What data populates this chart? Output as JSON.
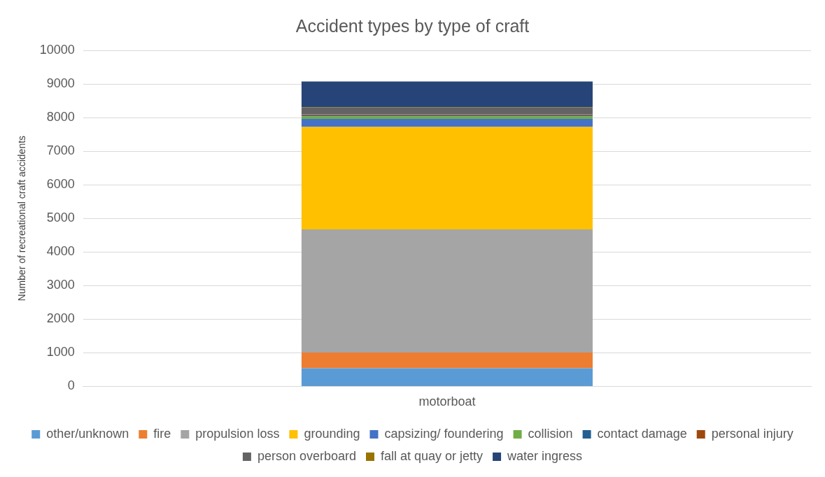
{
  "chart_data": {
    "type": "bar",
    "title": "Accident types by type of craft",
    "ylabel": "Number of recreational craft accidents",
    "categories": [
      "motorboat"
    ],
    "stacked": true,
    "ylim": [
      0,
      10000
    ],
    "yticks": [
      0,
      1000,
      2000,
      3000,
      4000,
      5000,
      6000,
      7000,
      8000,
      9000,
      10000
    ],
    "grid": "y",
    "legend": "bottom",
    "series": [
      {
        "name": "other/unknown",
        "color": "#5b9bd5",
        "values": [
          540
        ]
      },
      {
        "name": "fire",
        "color": "#ed7d31",
        "values": [
          470
        ]
      },
      {
        "name": "propulsion loss",
        "color": "#a5a5a5",
        "values": [
          3660
        ]
      },
      {
        "name": "grounding",
        "color": "#ffc000",
        "values": [
          3050
        ]
      },
      {
        "name": "capsizing/ foundering",
        "color": "#4472c4",
        "values": [
          240
        ]
      },
      {
        "name": "collision",
        "color": "#70ad47",
        "values": [
          80
        ]
      },
      {
        "name": "contact damage",
        "color": "#255e91",
        "values": [
          30
        ]
      },
      {
        "name": "personal injury",
        "color": "#9e480e",
        "values": [
          25
        ]
      },
      {
        "name": "person overboard",
        "color": "#636363",
        "values": [
          200
        ]
      },
      {
        "name": "fall at quay or jetty",
        "color": "#997300",
        "values": [
          10
        ]
      },
      {
        "name": "water ingress",
        "color": "#264478",
        "values": [
          770
        ]
      }
    ]
  }
}
